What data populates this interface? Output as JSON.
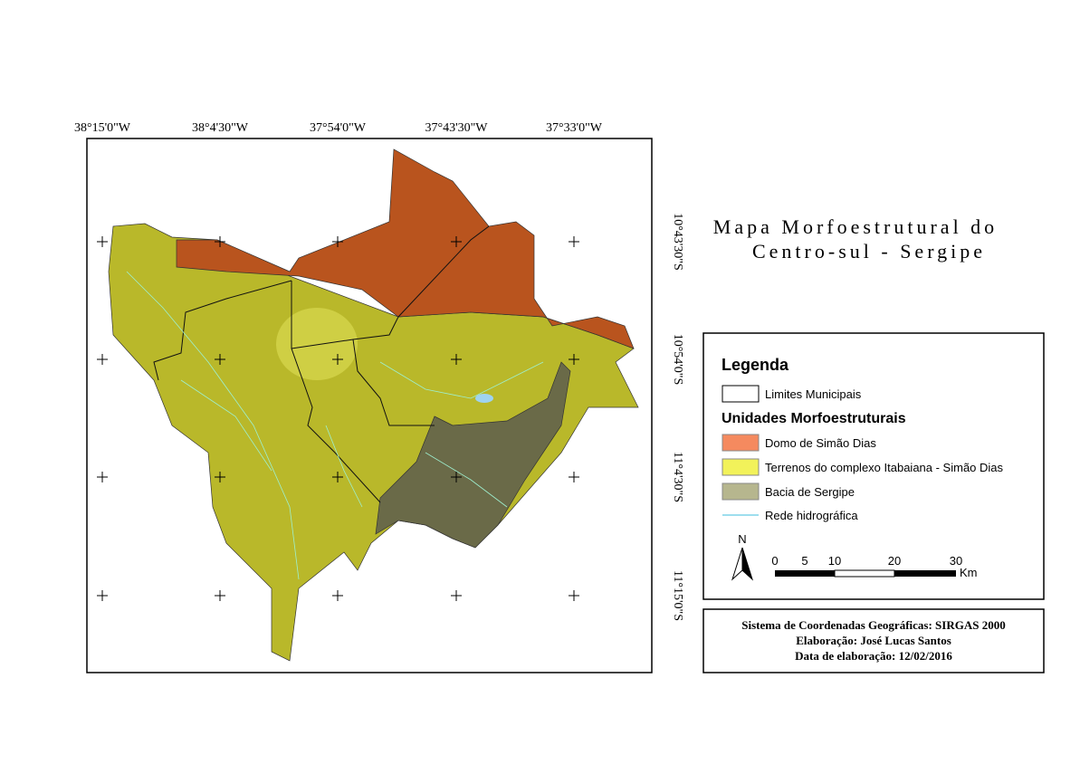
{
  "title_lines": [
    "Mapa Morfoestrutural do",
    "Centro-sul - Sergipe"
  ],
  "map": {
    "top_labels": [
      "38°15'0\"W",
      "38°4'30\"W",
      "37°54'0\"W",
      "37°43'30\"W",
      "37°33'0\"W"
    ],
    "right_labels": [
      "10°43'30\"S",
      "10°54'0\"S",
      "11°4'30\"S",
      "11°15'0\"S"
    ]
  },
  "legend": {
    "title": "Legenda",
    "boundary": "Limites Municipais",
    "section": "Unidades Morfoestruturais",
    "units": [
      {
        "label": "Domo de Simão Dias",
        "color": "#f58a5f"
      },
      {
        "label": "Terrenos do complexo Itabaiana - Simão Dias",
        "color": "#f2f25a"
      },
      {
        "label": "Bacia de Sergipe",
        "color": "#b6b68e"
      }
    ],
    "hydro": "Rede hidrográfica",
    "north": "N",
    "scale_ticks": [
      "0",
      "5",
      "10",
      "20",
      "30"
    ],
    "scale_unit": "Km"
  },
  "info": [
    "Sistema de Coordenadas Geográficas: SIRGAS 2000",
    "Elaboração: José Lucas Santos",
    "Data de elaboração: 12/02/2016"
  ]
}
